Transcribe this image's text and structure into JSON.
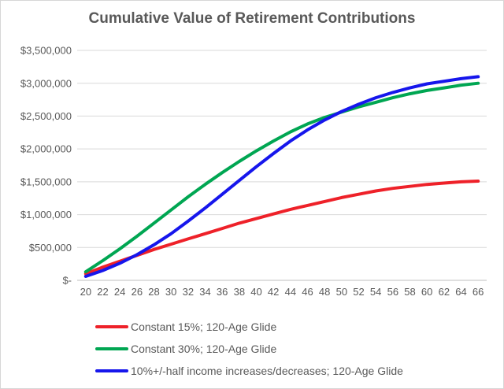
{
  "title": "Cumulative Value of Retirement Contributions",
  "theme": {
    "text_color": "#595959",
    "gridline_color": "#d9d9d9",
    "axis_line_color": "#bfbfbf",
    "background_color": "#ffffff",
    "border_color": "#d6d6d6"
  },
  "chart_data": {
    "type": "line",
    "title": "Cumulative Value of Retirement Contributions",
    "xlabel": "",
    "ylabel": "",
    "grid": true,
    "legend_position": "bottom-left",
    "ylim": [
      0,
      3500000
    ],
    "y_ticks": [
      {
        "value": 0,
        "label": "$-"
      },
      {
        "value": 500000,
        "label": "$500,000"
      },
      {
        "value": 1000000,
        "label": "$1,000,000"
      },
      {
        "value": 1500000,
        "label": "$1,500,000"
      },
      {
        "value": 2000000,
        "label": "$2,000,000"
      },
      {
        "value": 2500000,
        "label": "$2,500,000"
      },
      {
        "value": 3000000,
        "label": "$3,000,000"
      },
      {
        "value": 3500000,
        "label": "$3,500,000"
      }
    ],
    "categories": [
      20,
      22,
      24,
      26,
      28,
      30,
      32,
      34,
      36,
      38,
      40,
      42,
      44,
      46,
      48,
      50,
      52,
      54,
      56,
      58,
      60,
      62,
      64,
      66
    ],
    "series": [
      {
        "name": "Constant 15%; 120-Age Glide",
        "color": "#ee2129",
        "values": [
          100000,
          200000,
          290000,
          380000,
          470000,
          550000,
          630000,
          710000,
          790000,
          870000,
          940000,
          1010000,
          1080000,
          1140000,
          1200000,
          1260000,
          1310000,
          1360000,
          1400000,
          1430000,
          1460000,
          1480000,
          1500000,
          1510000
        ]
      },
      {
        "name": "Constant 30%; 120-Age Glide",
        "color": "#00a652",
        "values": [
          130000,
          300000,
          480000,
          670000,
          870000,
          1070000,
          1270000,
          1460000,
          1640000,
          1810000,
          1970000,
          2120000,
          2260000,
          2380000,
          2480000,
          2560000,
          2640000,
          2710000,
          2780000,
          2840000,
          2890000,
          2930000,
          2970000,
          3000000
        ]
      },
      {
        "name": "10%+/-half income increases/decreases; 120-Age Glide",
        "color": "#1616ec",
        "values": [
          60000,
          150000,
          260000,
          390000,
          540000,
          710000,
          900000,
          1100000,
          1310000,
          1520000,
          1730000,
          1930000,
          2120000,
          2290000,
          2440000,
          2570000,
          2680000,
          2780000,
          2860000,
          2930000,
          2990000,
          3030000,
          3070000,
          3100000
        ]
      }
    ]
  }
}
